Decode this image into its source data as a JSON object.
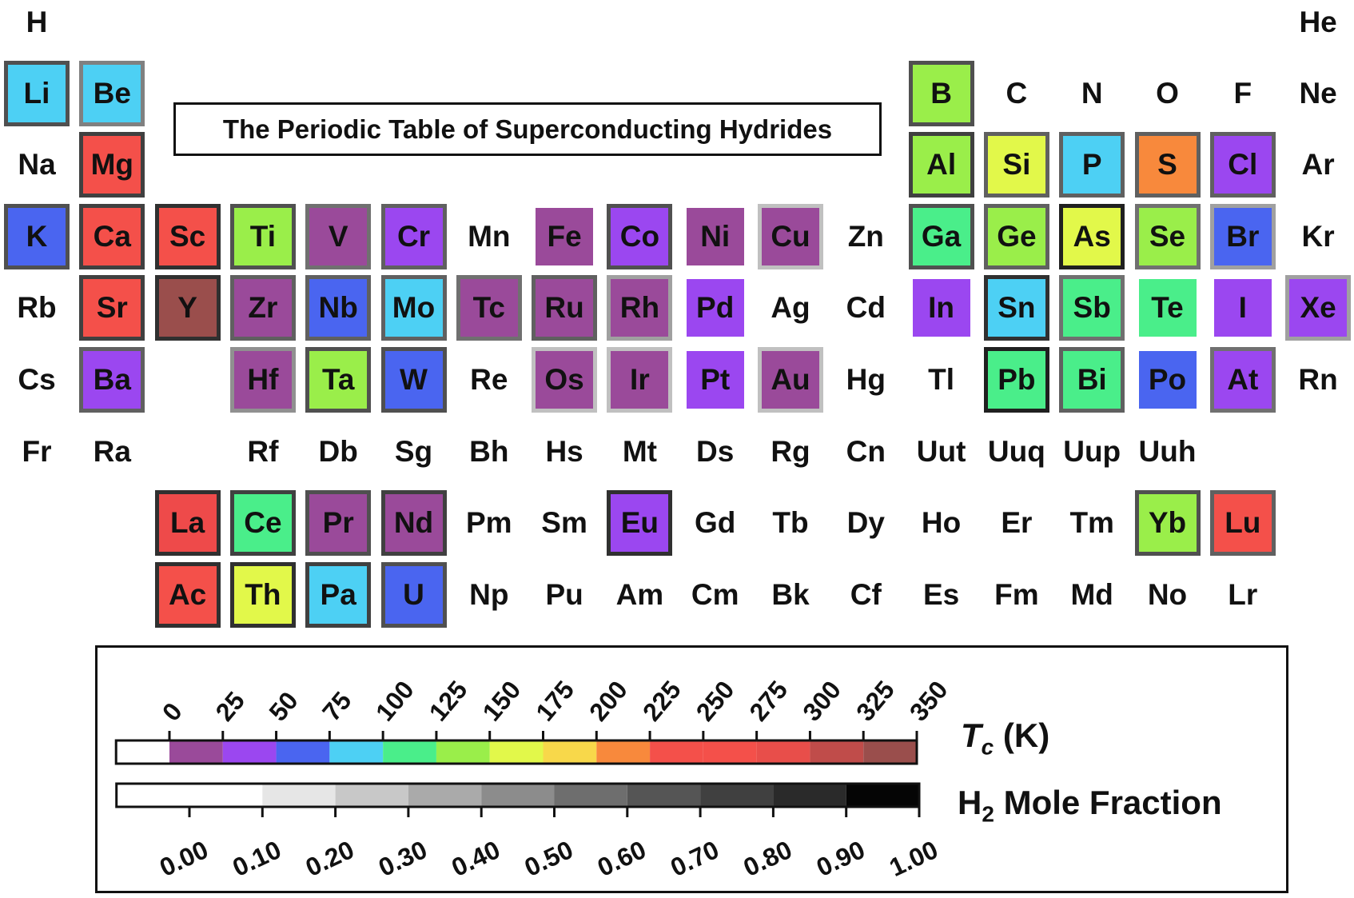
{
  "title": "The Periodic Table of Superconducting Hydrides",
  "elements": [
    {
      "symbol": "H",
      "row": 1,
      "col": 1
    },
    {
      "symbol": "He",
      "row": 1,
      "col": 18
    },
    {
      "symbol": "Li",
      "row": 2,
      "col": 1,
      "fill": "#4dd0f4",
      "border": "#505050"
    },
    {
      "symbol": "Be",
      "row": 2,
      "col": 2,
      "fill": "#4dd0f4",
      "border": "#808080"
    },
    {
      "symbol": "B",
      "row": 2,
      "col": 13,
      "fill": "#9aee4a",
      "border": "#505050"
    },
    {
      "symbol": "C",
      "row": 2,
      "col": 14
    },
    {
      "symbol": "N",
      "row": 2,
      "col": 15
    },
    {
      "symbol": "O",
      "row": 2,
      "col": 16
    },
    {
      "symbol": "F",
      "row": 2,
      "col": 17
    },
    {
      "symbol": "Ne",
      "row": 2,
      "col": 18
    },
    {
      "symbol": "Na",
      "row": 3,
      "col": 1
    },
    {
      "symbol": "Mg",
      "row": 3,
      "col": 2,
      "fill": "#f4504a",
      "border": "#404040"
    },
    {
      "symbol": "Al",
      "row": 3,
      "col": 13,
      "fill": "#9aee4a",
      "border": "#404040"
    },
    {
      "symbol": "Si",
      "row": 3,
      "col": 14,
      "fill": "#e2f84a",
      "border": "#606060"
    },
    {
      "symbol": "P",
      "row": 3,
      "col": 15,
      "fill": "#4dd0f4",
      "border": "#606060"
    },
    {
      "symbol": "S",
      "row": 3,
      "col": 16,
      "fill": "#f8893c",
      "border": "#606060"
    },
    {
      "symbol": "Cl",
      "row": 3,
      "col": 17,
      "fill": "#9b47f0",
      "border": "#606060"
    },
    {
      "symbol": "Ar",
      "row": 3,
      "col": 18
    },
    {
      "symbol": "K",
      "row": 4,
      "col": 1,
      "fill": "#4a65f0",
      "border": "#505050"
    },
    {
      "symbol": "Ca",
      "row": 4,
      "col": 2,
      "fill": "#f4504a",
      "border": "#404040"
    },
    {
      "symbol": "Sc",
      "row": 4,
      "col": 3,
      "fill": "#f4504a",
      "border": "#303030"
    },
    {
      "symbol": "Ti",
      "row": 4,
      "col": 4,
      "fill": "#9aee4a",
      "border": "#505050"
    },
    {
      "symbol": "V",
      "row": 4,
      "col": 5,
      "fill": "#9a4a9a",
      "border": "#707070"
    },
    {
      "symbol": "Cr",
      "row": 4,
      "col": 6,
      "fill": "#9b47f0",
      "border": "#606060"
    },
    {
      "symbol": "Mn",
      "row": 4,
      "col": 7
    },
    {
      "symbol": "Fe",
      "row": 4,
      "col": 8,
      "fill": "#9a4a9a",
      "border": "#ffffff"
    },
    {
      "symbol": "Co",
      "row": 4,
      "col": 9,
      "fill": "#9b47f0",
      "border": "#505050"
    },
    {
      "symbol": "Ni",
      "row": 4,
      "col": 10,
      "fill": "#9a4a9a",
      "border": "#ffffff"
    },
    {
      "symbol": "Cu",
      "row": 4,
      "col": 11,
      "fill": "#9a4a9a",
      "border": "#c0c0c0"
    },
    {
      "symbol": "Zn",
      "row": 4,
      "col": 12
    },
    {
      "symbol": "Ga",
      "row": 4,
      "col": 13,
      "fill": "#4aee8a",
      "border": "#505050"
    },
    {
      "symbol": "Ge",
      "row": 4,
      "col": 14,
      "fill": "#9aee4a",
      "border": "#606060"
    },
    {
      "symbol": "As",
      "row": 4,
      "col": 15,
      "fill": "#e2f84a",
      "border": "#202020"
    },
    {
      "symbol": "Se",
      "row": 4,
      "col": 16,
      "fill": "#9aee4a",
      "border": "#707070"
    },
    {
      "symbol": "Br",
      "row": 4,
      "col": 17,
      "fill": "#4a65f0",
      "border": "#a0a0a0"
    },
    {
      "symbol": "Kr",
      "row": 4,
      "col": 18
    },
    {
      "symbol": "Rb",
      "row": 5,
      "col": 1
    },
    {
      "symbol": "Sr",
      "row": 5,
      "col": 2,
      "fill": "#f4504a",
      "border": "#404040"
    },
    {
      "symbol": "Y",
      "row": 5,
      "col": 3,
      "fill": "#9a4e4c",
      "border": "#303030"
    },
    {
      "symbol": "Zr",
      "row": 5,
      "col": 4,
      "fill": "#9a4a9a",
      "border": "#606060"
    },
    {
      "symbol": "Nb",
      "row": 5,
      "col": 5,
      "fill": "#4a65f0",
      "border": "#606060"
    },
    {
      "symbol": "Mo",
      "row": 5,
      "col": 6,
      "fill": "#4dd0f4",
      "border": "#606060"
    },
    {
      "symbol": "Tc",
      "row": 5,
      "col": 7,
      "fill": "#9a4a9a",
      "border": "#707070"
    },
    {
      "symbol": "Ru",
      "row": 5,
      "col": 8,
      "fill": "#9a4a9a",
      "border": "#606060"
    },
    {
      "symbol": "Rh",
      "row": 5,
      "col": 9,
      "fill": "#9a4a9a",
      "border": "#a0a0a0"
    },
    {
      "symbol": "Pd",
      "row": 5,
      "col": 10,
      "fill": "#9b47f0",
      "border": "#ffffff"
    },
    {
      "symbol": "Ag",
      "row": 5,
      "col": 11
    },
    {
      "symbol": "Cd",
      "row": 5,
      "col": 12
    },
    {
      "symbol": "In",
      "row": 5,
      "col": 13,
      "fill": "#9b47f0",
      "border": "#ffffff"
    },
    {
      "symbol": "Sn",
      "row": 5,
      "col": 14,
      "fill": "#4dd0f4",
      "border": "#303030"
    },
    {
      "symbol": "Sb",
      "row": 5,
      "col": 15,
      "fill": "#4aee8a",
      "border": "#707070"
    },
    {
      "symbol": "Te",
      "row": 5,
      "col": 16,
      "fill": "#4aee8a",
      "border": "#ffffff"
    },
    {
      "symbol": "I",
      "row": 5,
      "col": 17,
      "fill": "#9b47f0",
      "border": "#ffffff"
    },
    {
      "symbol": "Xe",
      "row": 5,
      "col": 18,
      "fill": "#9b47f0",
      "border": "#a0a0a0"
    },
    {
      "symbol": "Cs",
      "row": 6,
      "col": 1
    },
    {
      "symbol": "Ba",
      "row": 6,
      "col": 2,
      "fill": "#9b47f0",
      "border": "#606060"
    },
    {
      "symbol": "Hf",
      "row": 6,
      "col": 4,
      "fill": "#9a4a9a",
      "border": "#909090"
    },
    {
      "symbol": "Ta",
      "row": 6,
      "col": 5,
      "fill": "#9aee4a",
      "border": "#505050"
    },
    {
      "symbol": "W",
      "row": 6,
      "col": 6,
      "fill": "#4a65f0",
      "border": "#505050"
    },
    {
      "symbol": "Re",
      "row": 6,
      "col": 7
    },
    {
      "symbol": "Os",
      "row": 6,
      "col": 8,
      "fill": "#9a4a9a",
      "border": "#c0c0c0"
    },
    {
      "symbol": "Ir",
      "row": 6,
      "col": 9,
      "fill": "#9a4a9a",
      "border": "#c0c0c0"
    },
    {
      "symbol": "Pt",
      "row": 6,
      "col": 10,
      "fill": "#9b47f0",
      "border": "#ffffff"
    },
    {
      "symbol": "Au",
      "row": 6,
      "col": 11,
      "fill": "#9a4a9a",
      "border": "#c0c0c0"
    },
    {
      "symbol": "Hg",
      "row": 6,
      "col": 12
    },
    {
      "symbol": "Tl",
      "row": 6,
      "col": 13
    },
    {
      "symbol": "Pb",
      "row": 6,
      "col": 14,
      "fill": "#4aee8a",
      "border": "#202020"
    },
    {
      "symbol": "Bi",
      "row": 6,
      "col": 15,
      "fill": "#4aee8a",
      "border": "#606060"
    },
    {
      "symbol": "Po",
      "row": 6,
      "col": 16,
      "fill": "#4a65f0",
      "border": "#ffffff"
    },
    {
      "symbol": "At",
      "row": 6,
      "col": 17,
      "fill": "#9b47f0",
      "border": "#707070"
    },
    {
      "symbol": "Rn",
      "row": 6,
      "col": 18
    },
    {
      "symbol": "Fr",
      "row": 7,
      "col": 1
    },
    {
      "symbol": "Ra",
      "row": 7,
      "col": 2
    },
    {
      "symbol": "Rf",
      "row": 7,
      "col": 4
    },
    {
      "symbol": "Db",
      "row": 7,
      "col": 5
    },
    {
      "symbol": "Sg",
      "row": 7,
      "col": 6
    },
    {
      "symbol": "Bh",
      "row": 7,
      "col": 7
    },
    {
      "symbol": "Hs",
      "row": 7,
      "col": 8
    },
    {
      "symbol": "Mt",
      "row": 7,
      "col": 9
    },
    {
      "symbol": "Ds",
      "row": 7,
      "col": 10
    },
    {
      "symbol": "Rg",
      "row": 7,
      "col": 11
    },
    {
      "symbol": "Cn",
      "row": 7,
      "col": 12
    },
    {
      "symbol": "Uut",
      "row": 7,
      "col": 13
    },
    {
      "symbol": "Uuq",
      "row": 7,
      "col": 14
    },
    {
      "symbol": "Uup",
      "row": 7,
      "col": 15
    },
    {
      "symbol": "Uuh",
      "row": 7,
      "col": 16
    },
    {
      "symbol": "La",
      "row": 8,
      "col": 3,
      "fill": "#ee4a4a",
      "border": "#303030"
    },
    {
      "symbol": "Ce",
      "row": 8,
      "col": 4,
      "fill": "#4aee8a",
      "border": "#404040"
    },
    {
      "symbol": "Pr",
      "row": 8,
      "col": 5,
      "fill": "#9a4a9a",
      "border": "#505050"
    },
    {
      "symbol": "Nd",
      "row": 8,
      "col": 6,
      "fill": "#9a4a9a",
      "border": "#404040"
    },
    {
      "symbol": "Pm",
      "row": 8,
      "col": 7
    },
    {
      "symbol": "Sm",
      "row": 8,
      "col": 8
    },
    {
      "symbol": "Eu",
      "row": 8,
      "col": 9,
      "fill": "#9b47f0",
      "border": "#303030"
    },
    {
      "symbol": "Gd",
      "row": 8,
      "col": 10
    },
    {
      "symbol": "Tb",
      "row": 8,
      "col": 11
    },
    {
      "symbol": "Dy",
      "row": 8,
      "col": 12
    },
    {
      "symbol": "Ho",
      "row": 8,
      "col": 13
    },
    {
      "symbol": "Er",
      "row": 8,
      "col": 14
    },
    {
      "symbol": "Tm",
      "row": 8,
      "col": 15
    },
    {
      "symbol": "Yb",
      "row": 8,
      "col": 16,
      "fill": "#9aee4a",
      "border": "#505050"
    },
    {
      "symbol": "Lu",
      "row": 8,
      "col": 17,
      "fill": "#f4504a",
      "border": "#606060"
    },
    {
      "symbol": "Ac",
      "row": 9,
      "col": 3,
      "fill": "#f4504a",
      "border": "#303030"
    },
    {
      "symbol": "Th",
      "row": 9,
      "col": 4,
      "fill": "#e2f84a",
      "border": "#303030"
    },
    {
      "symbol": "Pa",
      "row": 9,
      "col": 5,
      "fill": "#4dd0f4",
      "border": "#404040"
    },
    {
      "symbol": "U",
      "row": 9,
      "col": 6,
      "fill": "#4a65f0",
      "border": "#505050"
    },
    {
      "symbol": "Np",
      "row": 9,
      "col": 7
    },
    {
      "symbol": "Pu",
      "row": 9,
      "col": 8
    },
    {
      "symbol": "Am",
      "row": 9,
      "col": 9
    },
    {
      "symbol": "Cm",
      "row": 9,
      "col": 10
    },
    {
      "symbol": "Bk",
      "row": 9,
      "col": 11
    },
    {
      "symbol": "Cf",
      "row": 9,
      "col": 12
    },
    {
      "symbol": "Es",
      "row": 9,
      "col": 13
    },
    {
      "symbol": "Fm",
      "row": 9,
      "col": 14
    },
    {
      "symbol": "Md",
      "row": 9,
      "col": 15
    },
    {
      "symbol": "No",
      "row": 9,
      "col": 16
    },
    {
      "symbol": "Lr",
      "row": 9,
      "col": 17
    }
  ],
  "legend": {
    "tc": {
      "label_main": "T",
      "label_sub": "c",
      "label_unit": " (K)",
      "ticks": [
        "0",
        "25",
        "50",
        "75",
        "100",
        "125",
        "150",
        "175",
        "200",
        "225",
        "250",
        "275",
        "300",
        "325",
        "350"
      ],
      "segments": [
        {
          "from": -25,
          "to": 0,
          "color": "#ffffff"
        },
        {
          "from": 0,
          "to": 25,
          "color": "#9a4a9a"
        },
        {
          "from": 25,
          "to": 50,
          "color": "#9b47f0"
        },
        {
          "from": 50,
          "to": 75,
          "color": "#4a65f0"
        },
        {
          "from": 75,
          "to": 100,
          "color": "#4dd0f4"
        },
        {
          "from": 100,
          "to": 125,
          "color": "#4aee8a"
        },
        {
          "from": 125,
          "to": 150,
          "color": "#9aee4a"
        },
        {
          "from": 150,
          "to": 175,
          "color": "#e2f84a"
        },
        {
          "from": 175,
          "to": 200,
          "color": "#f8d84a"
        },
        {
          "from": 200,
          "to": 225,
          "color": "#f8893c"
        },
        {
          "from": 225,
          "to": 250,
          "color": "#f4504a"
        },
        {
          "from": 250,
          "to": 275,
          "color": "#f4504a"
        },
        {
          "from": 275,
          "to": 300,
          "color": "#e84e4a"
        },
        {
          "from": 300,
          "to": 325,
          "color": "#c04c4a"
        },
        {
          "from": 325,
          "to": 350,
          "color": "#9a4e4c"
        }
      ]
    },
    "h2": {
      "label_main": "H",
      "label_sub": "2",
      "label_rest": " Mole Fraction",
      "ticks": [
        "0.00",
        "0.10",
        "0.20",
        "0.30",
        "0.40",
        "0.50",
        "0.60",
        "0.70",
        "0.80",
        "0.90",
        "1.00"
      ],
      "segments": [
        {
          "from": -0.1,
          "to": 0.1,
          "color": "#ffffff"
        },
        {
          "from": 0.1,
          "to": 0.2,
          "color": "#e6e6e6"
        },
        {
          "from": 0.2,
          "to": 0.3,
          "color": "#c8c8c8"
        },
        {
          "from": 0.3,
          "to": 0.4,
          "color": "#aaaaaa"
        },
        {
          "from": 0.4,
          "to": 0.5,
          "color": "#8c8c8c"
        },
        {
          "from": 0.5,
          "to": 0.6,
          "color": "#6e6e6e"
        },
        {
          "from": 0.6,
          "to": 0.7,
          "color": "#555555"
        },
        {
          "from": 0.7,
          "to": 0.8,
          "color": "#404040"
        },
        {
          "from": 0.8,
          "to": 0.9,
          "color": "#2a2a2a"
        },
        {
          "from": 0.9,
          "to": 1.0,
          "color": "#050505"
        }
      ]
    }
  }
}
